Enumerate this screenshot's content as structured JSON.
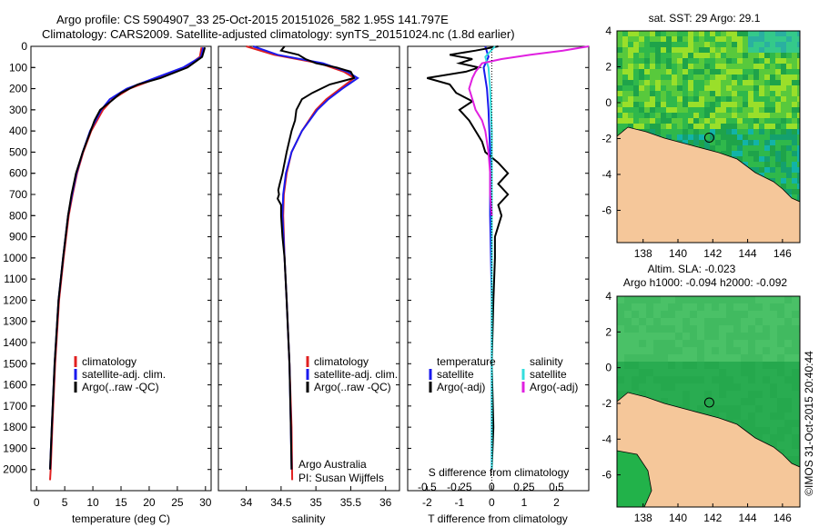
{
  "header": {
    "line1": "Argo profile: CS 5904907_33 25-Oct-2015 20151026_582 1.95S 141.797E",
    "line2": "Climatology: CARS2009. Satellite-adjusted climatology: synTS_20151024.nc (1.8d earlier)"
  },
  "colors": {
    "climatology": "#e02020",
    "satellite": "#1a1aee",
    "argo": "#000000",
    "sat_salinity": "#33dddd",
    "argo_salinity_diff": "#e020e0",
    "land": "#f5c79a"
  },
  "chart_data": [
    {
      "type": "line",
      "xlabel": "temperature (deg C)",
      "ylabel": "",
      "xlim": [
        -1,
        31
      ],
      "ylim": [
        2100,
        0
      ],
      "xticks": [
        "0",
        "5",
        "10",
        "15",
        "20",
        "25",
        "30"
      ],
      "xtick_values": [
        0,
        5,
        10,
        15,
        20,
        25,
        30
      ],
      "yticks": [
        "0",
        "100",
        "200",
        "300",
        "400",
        "500",
        "600",
        "700",
        "800",
        "900",
        "1000",
        "1100",
        "1200",
        "1300",
        "1400",
        "1500",
        "1600",
        "1700",
        "1800",
        "1900",
        "2000"
      ],
      "ytick_values": [
        0,
        100,
        200,
        300,
        400,
        500,
        600,
        700,
        800,
        900,
        1000,
        1100,
        1200,
        1300,
        1400,
        1500,
        1600,
        1700,
        1800,
        1900,
        2000
      ],
      "legend": [
        "climatology",
        "satellite-adj. clim.",
        "Argo(..raw -QC)"
      ],
      "series": [
        {
          "name": "climatology",
          "depth": [
            5,
            50,
            100,
            150,
            200,
            250,
            300,
            400,
            500,
            600,
            700,
            800,
            1000,
            1200,
            1500,
            1800,
            2000,
            2050
          ],
          "values": [
            29.3,
            29.0,
            26.5,
            21.5,
            16.5,
            13.5,
            11.8,
            9.7,
            8.3,
            7.2,
            6.4,
            5.7,
            4.8,
            4.0,
            3.3,
            2.8,
            2.5,
            2.4
          ]
        },
        {
          "name": "satellite-adj. clim.",
          "depth": [
            5,
            50,
            100,
            150,
            200,
            250,
            300,
            400,
            500,
            600,
            700,
            800,
            1000,
            1200,
            1500,
            1800,
            2000
          ],
          "values": [
            29.6,
            29.2,
            26.0,
            21.0,
            16.0,
            13.0,
            11.5,
            9.5,
            8.2,
            7.1,
            6.3,
            5.6,
            4.7,
            3.9,
            3.2,
            2.7,
            2.4
          ]
        },
        {
          "name": "Argo(..raw -QC)",
          "depth": [
            5,
            50,
            100,
            150,
            180,
            220,
            260,
            300,
            350,
            400,
            500,
            600,
            700,
            800,
            1000,
            1200,
            1500,
            1800,
            2000
          ],
          "values": [
            29.9,
            29.4,
            26.8,
            22.0,
            18.0,
            15.0,
            13.2,
            11.3,
            10.3,
            9.6,
            8.2,
            7.0,
            6.2,
            5.6,
            4.7,
            3.9,
            3.2,
            2.7,
            2.4
          ]
        }
      ]
    },
    {
      "type": "line",
      "xlabel": "salinity",
      "xlim": [
        33.6,
        36.2
      ],
      "ylim": [
        2100,
        0
      ],
      "xticks": [
        "34",
        "34.5",
        "35",
        "35.5",
        "36"
      ],
      "xtick_values": [
        34,
        34.5,
        35,
        35.5,
        36
      ],
      "legend": [
        "climatology",
        "satellite-adj. clim.",
        "Argo(..raw -QC)"
      ],
      "annotation": [
        "Argo Australia",
        "PI: Susan Wijffels"
      ],
      "series": [
        {
          "name": "climatology",
          "depth": [
            0,
            40,
            80,
            120,
            150,
            200,
            250,
            300,
            400,
            500,
            600,
            700,
            800,
            1000,
            1200,
            1500,
            1800,
            2050
          ],
          "values": [
            34.0,
            34.4,
            35.05,
            35.4,
            35.55,
            35.35,
            35.15,
            35.0,
            34.8,
            34.65,
            34.58,
            34.54,
            34.53,
            34.55,
            34.58,
            34.62,
            34.65,
            34.66
          ]
        },
        {
          "name": "satellite-adj. clim.",
          "depth": [
            0,
            40,
            80,
            120,
            150,
            200,
            250,
            300,
            400,
            500,
            600,
            700,
            800,
            1000,
            1200,
            1500,
            1800,
            2000
          ],
          "values": [
            34.1,
            34.45,
            35.1,
            35.45,
            35.6,
            35.38,
            35.18,
            35.02,
            34.8,
            34.65,
            34.57,
            34.53,
            34.52,
            34.55,
            34.58,
            34.62,
            34.64,
            34.65
          ]
        },
        {
          "name": "Argo(..raw -QC)",
          "depth": [
            0,
            20,
            40,
            60,
            80,
            100,
            120,
            150,
            180,
            220,
            250,
            300,
            350,
            400,
            500,
            600,
            650,
            680,
            700,
            720,
            750,
            800,
            900,
            1000,
            1200,
            1500,
            1800,
            2000
          ],
          "values": [
            34.55,
            34.5,
            34.75,
            34.85,
            35.0,
            35.3,
            35.5,
            35.55,
            35.2,
            34.95,
            34.8,
            34.72,
            34.7,
            34.65,
            34.58,
            34.52,
            34.48,
            34.46,
            34.47,
            34.45,
            34.5,
            34.5,
            34.52,
            34.55,
            34.58,
            34.62,
            34.64,
            34.65
          ]
        }
      ]
    },
    {
      "type": "line",
      "xlabel": "T difference from climatology",
      "xlim": [
        -2.6,
        3.0
      ],
      "ylim": [
        2100,
        0
      ],
      "xticks": [
        "-2",
        "-1",
        "0",
        "1",
        "2"
      ],
      "xtick_values": [
        -2,
        -1,
        0,
        1,
        2
      ],
      "top_label": "S difference from climatology",
      "top_ticks": [
        "-0.5",
        "-0.25",
        "0",
        "0.25",
        "0.5"
      ],
      "top_tick_values": [
        -2,
        -1,
        0,
        1,
        2
      ],
      "legend_temperature": {
        "title": "temperature",
        "items": [
          "satellite",
          "Argo(-adj)"
        ]
      },
      "legend_salinity": {
        "title": "salinity",
        "items": [
          "satellite",
          "Argo(-adj)"
        ]
      },
      "series": [
        {
          "name": "temperature satellite",
          "depth": [
            0,
            50,
            100,
            200,
            300,
            500,
            800,
            1200,
            1600,
            2000
          ],
          "values": [
            -0.2,
            -0.1,
            -0.25,
            -0.15,
            -0.1,
            -0.05,
            -0.05,
            0.0,
            0.0,
            0.0
          ]
        },
        {
          "name": "temperature Argo(-adj)",
          "depth": [
            0,
            20,
            40,
            60,
            80,
            100,
            120,
            150,
            180,
            220,
            260,
            300,
            350,
            400,
            450,
            500,
            550,
            600,
            650,
            700,
            750,
            800,
            900,
            1000,
            1200,
            1500,
            1800,
            2000
          ],
          "values": [
            0.2,
            -0.5,
            -1.3,
            -0.6,
            -1.0,
            -0.4,
            -0.8,
            -2.0,
            -1.3,
            -1.1,
            -0.6,
            -1.0,
            -0.7,
            -0.5,
            -0.3,
            -0.2,
            0.2,
            0.5,
            0.2,
            0.5,
            0.2,
            0.3,
            0.1,
            0.1,
            0.05,
            0.0,
            0.05,
            0.0
          ]
        },
        {
          "name": "salinity satellite",
          "depth": [
            0,
            50,
            100,
            200,
            400,
            800,
            1200,
            1600,
            2000
          ],
          "values": [
            0.1,
            -0.2,
            -0.1,
            -0.05,
            0.0,
            0.0,
            0.0,
            0.0,
            0.0
          ]
        },
        {
          "name": "salinity Argo(-adj)",
          "depth": [
            0,
            20,
            40,
            60,
            80,
            100,
            120,
            150,
            200,
            250,
            300,
            350,
            400,
            500,
            600,
            700,
            800
          ],
          "values": [
            3.0,
            2.2,
            1.2,
            0.3,
            -0.3,
            -0.4,
            -0.5,
            -0.6,
            -0.7,
            -0.6,
            -0.5,
            -0.3,
            -0.2,
            -0.1,
            -0.05,
            -0.05,
            0.0
          ]
        }
      ]
    },
    {
      "type": "heatmap",
      "title": "sat. SST: 29 Argo: 29.1",
      "xlim": [
        136.5,
        147
      ],
      "ylim": [
        -7.8,
        4
      ],
      "xticks": [
        "138",
        "140",
        "142",
        "144",
        "146"
      ],
      "xtick_values": [
        138,
        140,
        142,
        144,
        146
      ],
      "yticks": [
        "4",
        "2",
        "0",
        "-2",
        "-4",
        "-6"
      ],
      "ytick_values": [
        4,
        2,
        0,
        -2,
        -4,
        -6
      ],
      "float_position": {
        "lon": 141.797,
        "lat": -1.95
      }
    },
    {
      "type": "heatmap",
      "title": "Altim. SLA: -0.023",
      "subtitle": "Argo h1000: -0.094 h2000: -0.092",
      "xlim": [
        136.5,
        147
      ],
      "ylim": [
        -7.8,
        4
      ],
      "xticks": [
        "138",
        "140",
        "142",
        "144",
        "146"
      ],
      "xtick_values": [
        138,
        140,
        142,
        144,
        146
      ],
      "yticks": [
        "4",
        "2",
        "0",
        "-2",
        "-4",
        "-6"
      ],
      "ytick_values": [
        4,
        2,
        0,
        -2,
        -4,
        -6
      ],
      "float_position": {
        "lon": 141.797,
        "lat": -1.95
      }
    }
  ],
  "footer": {
    "credit": "©IMOS 31-Oct-2015 20:40:44"
  }
}
